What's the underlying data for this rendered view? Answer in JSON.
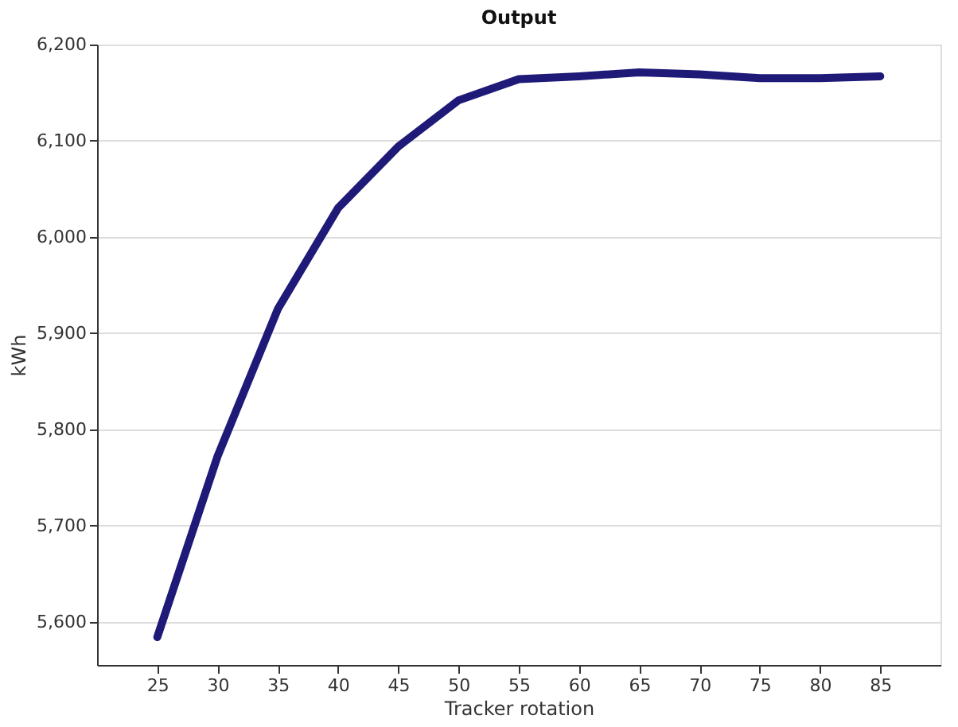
{
  "chart_data": {
    "type": "line",
    "title": "Output",
    "xlabel": "Tracker rotation",
    "ylabel": "kWh",
    "x": [
      25,
      30,
      35,
      40,
      45,
      50,
      55,
      60,
      65,
      70,
      75,
      80,
      85
    ],
    "series": [
      {
        "color": "#1f1a78",
        "values": [
          5584,
          5772,
          5925,
          6030,
          6094,
          6142,
          6164,
          6167,
          6171,
          6169,
          6165,
          6165,
          6167
        ]
      }
    ],
    "xlim": [
      20,
      90
    ],
    "xticks": [
      25,
      30,
      35,
      40,
      45,
      50,
      55,
      60,
      65,
      70,
      75,
      80,
      85
    ],
    "ylim": [
      5555,
      6200
    ],
    "yticks": [
      {
        "value": 5600,
        "label": "5,600"
      },
      {
        "value": 5700,
        "label": "5,700"
      },
      {
        "value": 5800,
        "label": "5,800"
      },
      {
        "value": 5900,
        "label": "5,900"
      },
      {
        "value": 6000,
        "label": "6,000"
      },
      {
        "value": 6100,
        "label": "6,100"
      },
      {
        "value": 6200,
        "label": "6,200"
      }
    ],
    "grid": "y",
    "marker": "none",
    "line_style": "solid"
  }
}
